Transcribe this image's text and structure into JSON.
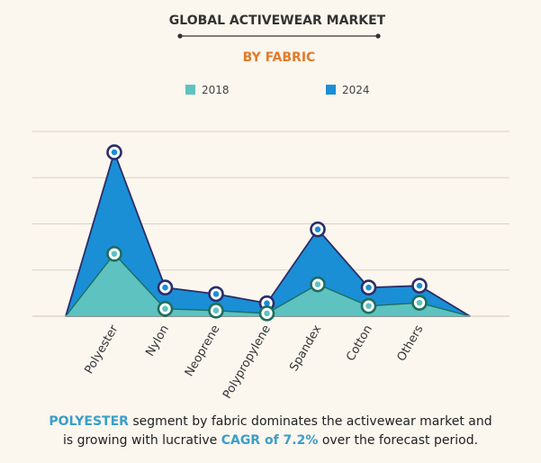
{
  "chart_data": {
    "type": "area",
    "title": "GLOBAL ACTIVEWEAR MARKET",
    "subtitle": "BY FABRIC",
    "categories": [
      "Polyester",
      "Nylon",
      "Neoprene",
      "Polypropylene",
      "Spandex",
      "Cotton",
      "Others"
    ],
    "series": [
      {
        "name": "2018",
        "values": [
          13.5,
          1.6,
          1.2,
          0.6,
          6.9,
          2.2,
          2.9
        ]
      },
      {
        "name": "2024",
        "values": [
          35.5,
          6.2,
          4.8,
          2.8,
          18.8,
          6.2,
          6.6
        ]
      }
    ],
    "ylim": [
      0,
      40
    ],
    "grid": true,
    "legend": "top-center",
    "xlabel": "",
    "ylabel": ""
  },
  "colors": {
    "series_2018": "#5ec2c0",
    "series_2024": "#1a8fd6",
    "marker_ring_2024": "#2b2d6a",
    "marker_ring_2018": "#1d6e5c",
    "title": "#333333",
    "subtitle": "#e07b2a",
    "grid": "#d9d2c6",
    "highlight": "#3a9ec9"
  },
  "footer": {
    "line1_a": "POLYESTER",
    "line1_b": " segment by fabric dominates the activewear market and",
    "line2_a": "is growing with lucrative ",
    "line2_b": "CAGR of 7.2%",
    "line2_c": " over the forecast period."
  }
}
